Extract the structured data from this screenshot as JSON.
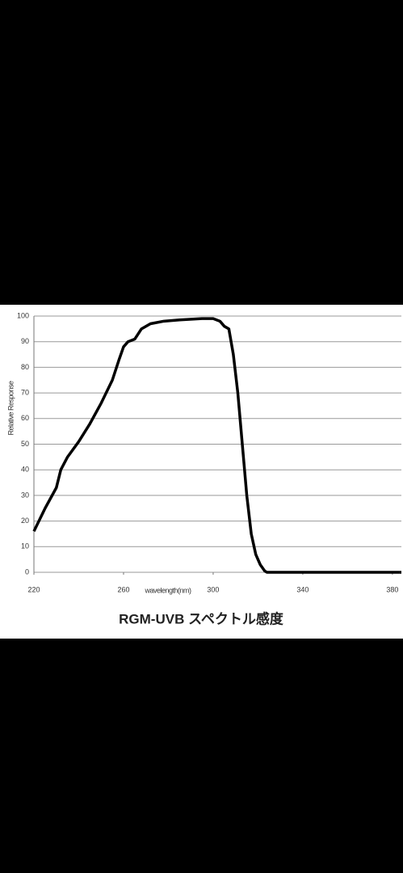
{
  "chart_data": {
    "type": "line",
    "title": "RGM-UVB スペクトル感度",
    "x_label": "wavelength(nm)",
    "y_label": "Relative Response",
    "x": [
      220,
      225,
      230,
      232,
      235,
      240,
      245,
      250,
      255,
      258,
      260,
      262,
      265,
      268,
      272,
      278,
      285,
      295,
      300,
      303,
      305,
      307,
      309,
      311,
      313,
      315,
      317,
      319,
      321,
      323,
      324,
      384
    ],
    "values": [
      16,
      25,
      33,
      40,
      45,
      51,
      58,
      66,
      75,
      83,
      88,
      90,
      91,
      95,
      97,
      98,
      98.5,
      99,
      99,
      98,
      96,
      95,
      85,
      70,
      50,
      30,
      15,
      7,
      3,
      0.5,
      0,
      0
    ],
    "color": "#000000",
    "xlim": [
      220,
      384
    ],
    "xticks": [
      220,
      260,
      300,
      340,
      380
    ],
    "ylim": [
      0,
      100
    ],
    "yticks": [
      0,
      10,
      20,
      30,
      40,
      50,
      60,
      70,
      80,
      90,
      100
    ],
    "grid": true
  }
}
